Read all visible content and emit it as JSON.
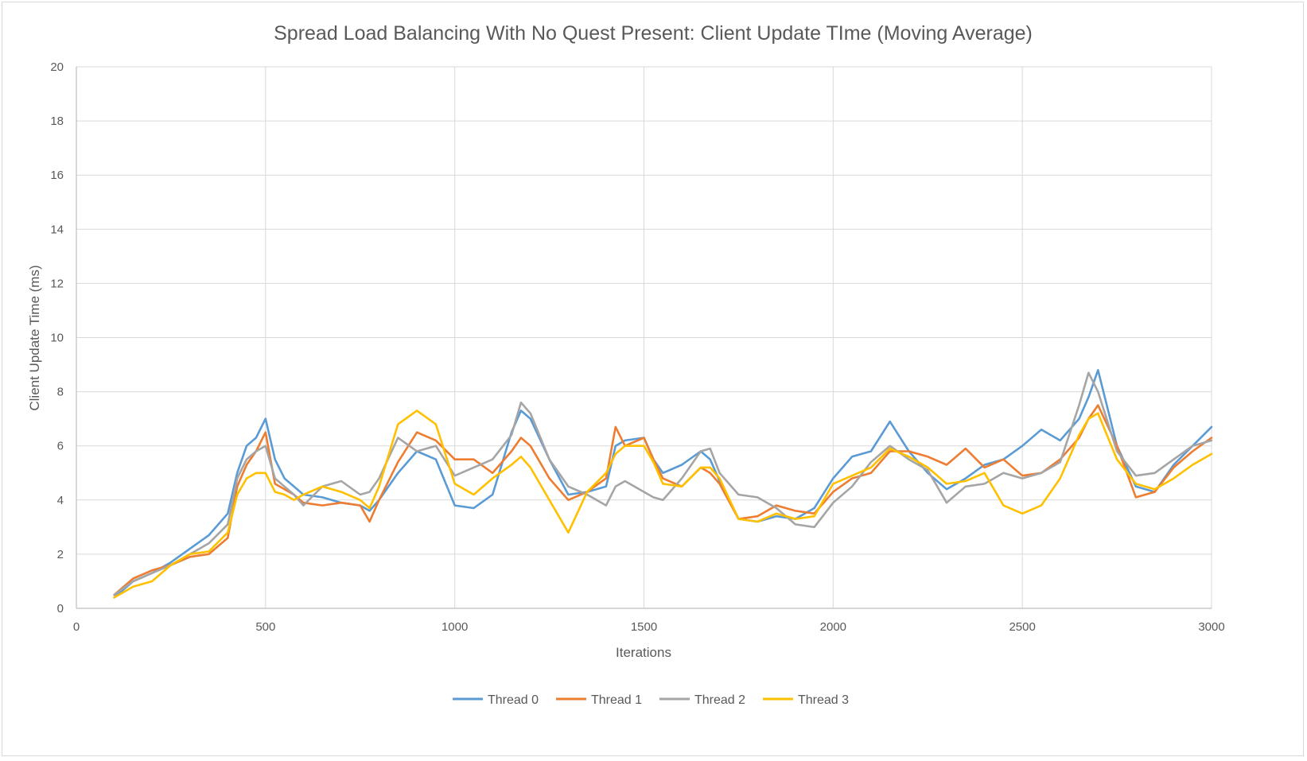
{
  "chart_data": {
    "type": "line",
    "title": "Spread Load Balancing With No Quest Present: Client Update TIme (Moving Average)",
    "xlabel": "Iterations",
    "ylabel": "Client Update Time (ms)",
    "xlim": [
      0,
      3000
    ],
    "ylim": [
      0,
      20
    ],
    "xticks": [
      0,
      500,
      1000,
      1500,
      2000,
      2500,
      3000
    ],
    "yticks": [
      0,
      2,
      4,
      6,
      8,
      10,
      12,
      14,
      16,
      18,
      20
    ],
    "grid": true,
    "legend_position": "bottom",
    "x": [
      100,
      150,
      200,
      250,
      300,
      350,
      400,
      425,
      450,
      475,
      500,
      525,
      550,
      575,
      600,
      650,
      700,
      750,
      775,
      800,
      850,
      900,
      950,
      1000,
      1050,
      1100,
      1150,
      1175,
      1200,
      1250,
      1300,
      1350,
      1400,
      1425,
      1450,
      1500,
      1525,
      1550,
      1600,
      1650,
      1675,
      1700,
      1750,
      1800,
      1850,
      1900,
      1950,
      2000,
      2050,
      2100,
      2150,
      2200,
      2250,
      2300,
      2350,
      2400,
      2450,
      2500,
      2550,
      2600,
      2650,
      2675,
      2700,
      2750,
      2800,
      2850,
      2900,
      2950,
      3000
    ],
    "series": [
      {
        "name": "Thread 0",
        "color": "#5b9bd5",
        "values": [
          0.4,
          1.0,
          1.3,
          1.7,
          2.2,
          2.7,
          3.5,
          5.0,
          6.0,
          6.3,
          7.0,
          5.5,
          4.8,
          4.5,
          4.2,
          4.1,
          3.9,
          3.8,
          3.6,
          4.0,
          5.0,
          5.8,
          5.5,
          3.8,
          3.7,
          4.2,
          6.5,
          7.3,
          7.0,
          5.5,
          4.2,
          4.3,
          4.5,
          6.0,
          6.2,
          6.3,
          5.5,
          5.0,
          5.3,
          5.8,
          5.5,
          4.7,
          3.3,
          3.2,
          3.4,
          3.3,
          3.7,
          4.8,
          5.6,
          5.8,
          6.9,
          5.8,
          5.0,
          4.4,
          4.8,
          5.3,
          5.5,
          6.0,
          6.6,
          6.2,
          7.0,
          7.8,
          8.8,
          6.0,
          4.5,
          4.3,
          5.3,
          6.0,
          6.7
        ]
      },
      {
        "name": "Thread 1",
        "color": "#ed7d31",
        "values": [
          0.5,
          1.1,
          1.4,
          1.6,
          1.9,
          2.0,
          2.6,
          4.5,
          5.3,
          5.8,
          6.5,
          4.6,
          4.4,
          4.2,
          3.9,
          3.8,
          3.9,
          3.8,
          3.2,
          4.0,
          5.4,
          6.5,
          6.2,
          5.5,
          5.5,
          5.0,
          5.8,
          6.3,
          6.0,
          4.8,
          4.0,
          4.3,
          4.8,
          6.7,
          6.0,
          6.3,
          5.5,
          4.8,
          4.5,
          5.2,
          5.0,
          4.6,
          3.3,
          3.4,
          3.8,
          3.6,
          3.5,
          4.3,
          4.8,
          5.0,
          5.8,
          5.8,
          5.6,
          5.3,
          5.9,
          5.2,
          5.5,
          4.9,
          5.0,
          5.5,
          6.3,
          7.0,
          7.5,
          6.0,
          4.1,
          4.3,
          5.2,
          5.8,
          6.3
        ]
      },
      {
        "name": "Thread 2",
        "color": "#a5a5a5",
        "values": [
          0.5,
          1.0,
          1.3,
          1.6,
          2.0,
          2.4,
          3.1,
          4.8,
          5.5,
          5.8,
          6.0,
          4.8,
          4.5,
          4.2,
          3.8,
          4.5,
          4.7,
          4.2,
          4.3,
          4.8,
          6.3,
          5.8,
          6.0,
          4.9,
          5.2,
          5.5,
          6.4,
          7.6,
          7.2,
          5.5,
          4.5,
          4.2,
          3.8,
          4.5,
          4.7,
          4.3,
          4.1,
          4.0,
          4.8,
          5.8,
          5.9,
          5.0,
          4.2,
          4.1,
          3.7,
          3.1,
          3.0,
          3.9,
          4.5,
          5.4,
          6.0,
          5.5,
          5.1,
          3.9,
          4.5,
          4.6,
          5.0,
          4.8,
          5.0,
          5.4,
          7.5,
          8.7,
          8.0,
          5.8,
          4.9,
          5.0,
          5.5,
          6.0,
          6.2
        ]
      },
      {
        "name": "Thread 3",
        "color": "#ffc000",
        "values": [
          0.4,
          0.8,
          1.0,
          1.6,
          2.0,
          2.1,
          2.8,
          4.2,
          4.8,
          5.0,
          5.0,
          4.3,
          4.2,
          4.0,
          4.2,
          4.5,
          4.3,
          4.0,
          3.7,
          4.5,
          6.8,
          7.3,
          6.8,
          4.6,
          4.2,
          4.8,
          5.3,
          5.6,
          5.2,
          4.0,
          2.8,
          4.3,
          5.0,
          5.7,
          6.0,
          6.0,
          5.4,
          4.6,
          4.5,
          5.2,
          5.2,
          4.8,
          3.3,
          3.2,
          3.5,
          3.3,
          3.4,
          4.6,
          4.9,
          5.2,
          5.9,
          5.6,
          5.2,
          4.6,
          4.7,
          5.0,
          3.8,
          3.5,
          3.8,
          4.8,
          6.4,
          7.0,
          7.2,
          5.5,
          4.6,
          4.4,
          4.8,
          5.3,
          5.7
        ]
      }
    ]
  }
}
